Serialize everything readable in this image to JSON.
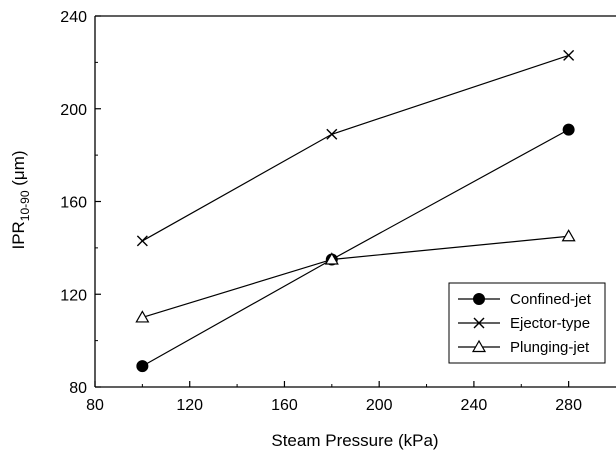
{
  "chart_data": {
    "type": "line",
    "title": "",
    "xlabel": "Steam Pressure (kPa)",
    "ylabel": {
      "main": "IPR",
      "subscript": "10-90",
      "unit": " (μm)"
    },
    "xlim": [
      80,
      300
    ],
    "ylim": [
      80,
      240
    ],
    "xticks": [
      80,
      120,
      160,
      200,
      240,
      280
    ],
    "yticks": [
      80,
      120,
      160,
      200,
      240
    ],
    "grid": false,
    "legend_position": "bottom-right",
    "series": [
      {
        "name": "Confined-jet",
        "marker": "circle-filled",
        "points": [
          [
            100,
            89
          ],
          [
            180,
            135
          ],
          [
            280,
            191
          ]
        ]
      },
      {
        "name": "Ejector-type",
        "marker": "cross",
        "points": [
          [
            100,
            143
          ],
          [
            180,
            189
          ],
          [
            280,
            223
          ]
        ]
      },
      {
        "name": "Plunging-jet",
        "marker": "triangle-open",
        "points": [
          [
            100,
            110
          ],
          [
            180,
            135
          ],
          [
            280,
            145
          ]
        ]
      }
    ]
  }
}
